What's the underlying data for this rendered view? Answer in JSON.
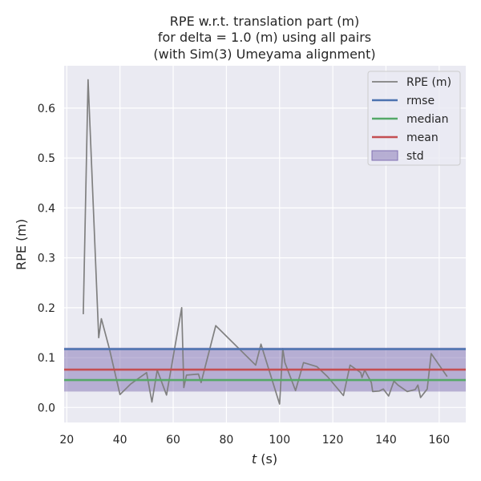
{
  "chart_data": {
    "type": "line",
    "title_lines": [
      "RPE w.r.t. translation part (m)",
      "for delta = 1.0 (m) using all pairs",
      "(with Sim(3) Umeyama alignment)"
    ],
    "xlabel_italic": "t",
    "xlabel_rest": " (s)",
    "ylabel": "RPE (m)",
    "xlim": [
      19,
      170
    ],
    "ylim": [
      -0.03,
      0.685
    ],
    "xticks": [
      20,
      40,
      60,
      80,
      100,
      120,
      140,
      160
    ],
    "yticks": [
      0.0,
      0.1,
      0.2,
      0.3,
      0.4,
      0.5,
      0.6
    ],
    "ytick_labels": [
      "0.0",
      "0.1",
      "0.2",
      "0.3",
      "0.4",
      "0.5",
      "0.6"
    ],
    "grid": true,
    "legend_position": "top-right",
    "series": [
      {
        "name": "RPE (m)",
        "color": "#808080",
        "x": [
          26.2,
          28.0,
          32.0,
          33.0,
          36.0,
          40.0,
          44.0,
          50.0,
          52.0,
          54.0,
          57.5,
          63.2,
          64.0,
          65.0,
          69.5,
          70.5,
          76.0,
          91.0,
          93.0,
          100.0,
          101.2,
          102.0,
          106.0,
          109.0,
          114.0,
          118.0,
          124.0,
          126.5,
          130.5,
          131.0,
          132.0,
          134.5,
          135.0,
          137.5,
          139.0,
          141.0,
          143.0,
          144.5,
          148.0,
          151.0,
          152.0,
          153.0,
          155.5,
          157.0,
          163.0
        ],
        "y": [
          0.187,
          0.657,
          0.14,
          0.178,
          0.118,
          0.026,
          0.047,
          0.07,
          0.011,
          0.075,
          0.025,
          0.2,
          0.04,
          0.065,
          0.067,
          0.05,
          0.164,
          0.085,
          0.127,
          0.007,
          0.118,
          0.09,
          0.034,
          0.09,
          0.082,
          0.062,
          0.024,
          0.085,
          0.07,
          0.06,
          0.075,
          0.05,
          0.032,
          0.033,
          0.037,
          0.023,
          0.053,
          0.045,
          0.032,
          0.036,
          0.045,
          0.02,
          0.037,
          0.108,
          0.062
        ]
      }
    ],
    "hlines": [
      {
        "name": "rmse",
        "value": 0.117,
        "color": "#4c72b0"
      },
      {
        "name": "median",
        "value": 0.055,
        "color": "#55a868"
      },
      {
        "name": "mean",
        "value": 0.076,
        "color": "#c44e52"
      }
    ],
    "band": {
      "name": "std",
      "low": 0.032,
      "high": 0.12,
      "color": "#8172b3"
    }
  }
}
